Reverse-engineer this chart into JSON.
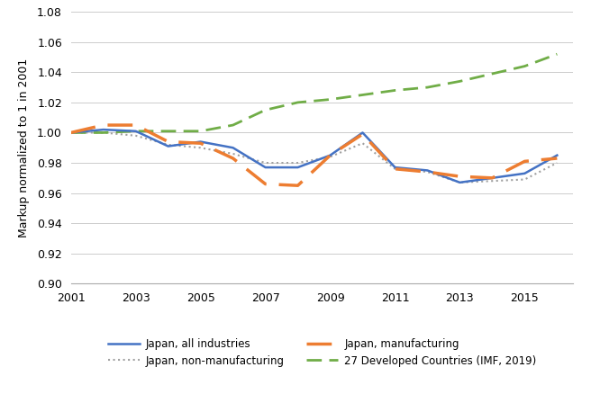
{
  "years": [
    2001,
    2002,
    2003,
    2004,
    2005,
    2006,
    2007,
    2008,
    2009,
    2010,
    2011,
    2012,
    2013,
    2014,
    2015,
    2016
  ],
  "japan_all": [
    1.0,
    1.002,
    1.001,
    0.991,
    0.994,
    0.99,
    0.977,
    0.977,
    0.985,
    1.0,
    0.977,
    0.975,
    0.967,
    0.97,
    0.973,
    0.985
  ],
  "japan_mfg": [
    1.0,
    1.005,
    1.005,
    0.994,
    0.993,
    0.983,
    0.966,
    0.965,
    0.985,
    0.999,
    0.976,
    0.974,
    0.971,
    0.97,
    0.981,
    0.983
  ],
  "japan_nonmfg": [
    1.0,
    1.0,
    0.998,
    0.992,
    0.99,
    0.986,
    0.98,
    0.98,
    0.984,
    0.993,
    0.976,
    0.974,
    0.967,
    0.968,
    0.969,
    0.98
  ],
  "dev_countries": [
    1.0,
    1.0,
    1.001,
    1.001,
    1.001,
    1.005,
    1.015,
    1.02,
    1.022,
    1.025,
    1.028,
    1.03,
    1.034,
    1.039,
    1.044,
    1.052
  ],
  "ylim": [
    0.9,
    1.08
  ],
  "yticks": [
    0.9,
    0.92,
    0.94,
    0.96,
    0.98,
    1.0,
    1.02,
    1.04,
    1.06,
    1.08
  ],
  "xlim_min": 2001,
  "xlim_max": 2016.5,
  "xticks": [
    2001,
    2003,
    2005,
    2007,
    2009,
    2011,
    2013,
    2015
  ],
  "ylabel": "Markup normalized to 1 in 2001",
  "color_all": "#4472C4",
  "color_mfg": "#ED7D31",
  "color_nonmfg": "#A0A0A0",
  "color_dev": "#70AD47",
  "legend_all": "Japan, all industries",
  "legend_mfg": "Japan, manufacturing",
  "legend_nonmfg": "Japan, non-manufacturing",
  "legend_dev": "27 Developed Countries (IMF, 2019)",
  "lw_all": 1.8,
  "lw_mfg": 2.5,
  "lw_nonmfg": 1.5,
  "lw_dev": 2.0
}
